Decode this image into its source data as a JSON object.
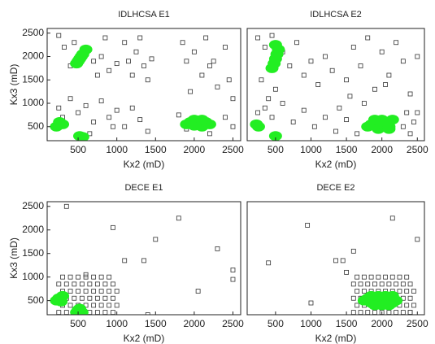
{
  "chart_data": [
    {
      "type": "scatter",
      "title": "IDLHCSA E1",
      "xlabel": "Kx2 (mD)",
      "ylabel": "Kx3 (mD)",
      "xlim": [
        100,
        2600
      ],
      "ylim": [
        200,
        2600
      ],
      "xticks": [
        500,
        1000,
        1500,
        2000,
        2500
      ],
      "yticks": [
        500,
        1000,
        1500,
        2000,
        2500
      ],
      "series": [
        {
          "color": "#333333",
          "marker": "square",
          "x": [
            250,
            320,
            400,
            450,
            600,
            700,
            750,
            800,
            850,
            900,
            1000,
            1100,
            1150,
            1200,
            1250,
            1300,
            1350,
            1400,
            1450,
            1850,
            1900,
            2000,
            2100,
            2150,
            2200,
            2300,
            2400,
            2450,
            2500,
            1950,
            2250,
            250,
            300,
            400,
            500,
            600,
            700,
            800,
            900,
            1000,
            1100,
            1200,
            1300,
            1400,
            1800,
            1900,
            2200,
            2400,
            2500,
            650,
            950
          ],
          "y": [
            2450,
            2200,
            1800,
            2300,
            2100,
            1900,
            1600,
            2000,
            2400,
            1700,
            1850,
            2300,
            1900,
            1600,
            2100,
            2400,
            1800,
            1500,
            1950,
            2300,
            1900,
            2100,
            1600,
            2400,
            1800,
            1350,
            2200,
            1500,
            1100,
            1250,
            1900,
            900,
            700,
            1100,
            800,
            950,
            600,
            1050,
            700,
            850,
            500,
            900,
            650,
            400,
            750,
            450,
            350,
            700,
            500,
            350,
            500
          ]
        },
        {
          "color": "#22ee22",
          "marker": "circle",
          "x": [
            480,
            520,
            560,
            600,
            540,
            500,
            220,
            260,
            300,
            520,
            560,
            1900,
            1950,
            2000,
            2050,
            2100,
            2150,
            2200,
            2000,
            2100
          ],
          "y": [
            1850,
            1950,
            2050,
            2150,
            2000,
            1900,
            500,
            600,
            550,
            300,
            280,
            550,
            600,
            520,
            580,
            500,
            600,
            550,
            650,
            650
          ]
        }
      ]
    },
    {
      "type": "scatter",
      "title": "IDLHCSA E2",
      "xlabel": "Kx2 (mD)",
      "xlim": [
        100,
        2600
      ],
      "ylim": [
        200,
        2600
      ],
      "xticks": [
        500,
        1000,
        1500,
        2000,
        2500
      ],
      "series": [
        {
          "color": "#333333",
          "marker": "square",
          "x": [
            250,
            300,
            350,
            400,
            450,
            500,
            600,
            700,
            800,
            900,
            1000,
            1100,
            1200,
            1300,
            1500,
            1600,
            1700,
            1800,
            1900,
            2000,
            2100,
            2200,
            2300,
            2400,
            2500,
            1400,
            1550,
            1750,
            2050,
            2350,
            250,
            350,
            450,
            600,
            750,
            900,
            1050,
            1200,
            1350,
            1500,
            1650,
            2300,
            2400,
            2500,
            2450
          ],
          "y": [
            2400,
            1500,
            2200,
            1100,
            2450,
            1300,
            2100,
            1800,
            2300,
            1600,
            1900,
            1400,
            2000,
            1700,
            1500,
            2200,
            1800,
            2400,
            1300,
            2100,
            1600,
            2300,
            1900,
            1200,
            2000,
            900,
            1150,
            1000,
            1400,
            800,
            800,
            900,
            700,
            1000,
            600,
            850,
            500,
            700,
            400,
            650,
            350,
            500,
            350,
            800,
            600
          ]
        },
        {
          "color": "#22ee22",
          "marker": "circle",
          "x": [
            450,
            480,
            500,
            520,
            540,
            500,
            230,
            260,
            500,
            1800,
            1850,
            1900,
            1950,
            2000,
            2050,
            2100,
            2150,
            1900,
            2000,
            2100
          ],
          "y": [
            1750,
            1850,
            1950,
            2050,
            2150,
            2250,
            550,
            500,
            300,
            500,
            550,
            600,
            450,
            550,
            600,
            500,
            650,
            650,
            650,
            450
          ]
        }
      ]
    },
    {
      "type": "scatter",
      "title": "DECE E1",
      "xlabel": "Kx2 (mD)",
      "ylabel": "Kx3 (mD)",
      "xlim": [
        100,
        2600
      ],
      "ylim": [
        200,
        2600
      ],
      "xticks": [
        500,
        1000,
        1500,
        2000,
        2500
      ],
      "yticks": [
        500,
        1000,
        1500,
        2000,
        2500
      ],
      "series": [
        {
          "color": "#333333",
          "marker": "square",
          "x": [
            250,
            350,
            450,
            550,
            650,
            750,
            850,
            950,
            300,
            400,
            500,
            600,
            700,
            800,
            900,
            1000,
            250,
            350,
            450,
            550,
            650,
            750,
            850,
            950,
            300,
            400,
            500,
            600,
            700,
            800,
            900,
            1000,
            250,
            350,
            450,
            550,
            650,
            750,
            850,
            950,
            300,
            400,
            500,
            600,
            700,
            800,
            900,
            350,
            950,
            1100,
            1350,
            1800,
            1500,
            2050,
            2300,
            2500,
            2500,
            1400,
            600
          ],
          "y": [
            250,
            250,
            250,
            250,
            250,
            250,
            250,
            250,
            400,
            400,
            400,
            400,
            400,
            400,
            400,
            400,
            550,
            550,
            550,
            550,
            550,
            550,
            550,
            550,
            700,
            700,
            700,
            700,
            700,
            700,
            700,
            700,
            850,
            850,
            850,
            850,
            850,
            850,
            850,
            850,
            1000,
            1000,
            1000,
            1000,
            1000,
            1000,
            1000,
            2500,
            2050,
            1350,
            1350,
            2250,
            1800,
            700,
            1600,
            1150,
            950,
            200,
            1050
          ]
        },
        {
          "color": "#22ee22",
          "marker": "circle",
          "x": [
            250,
            300,
            220,
            280,
            500,
            550,
            480,
            520
          ],
          "y": [
            550,
            600,
            500,
            480,
            300,
            250,
            250,
            330
          ]
        }
      ]
    },
    {
      "type": "scatter",
      "title": "DECE E2",
      "xlabel": "Kx2 (mD)",
      "xlim": [
        100,
        2600
      ],
      "ylim": [
        200,
        2600
      ],
      "xticks": [
        500,
        1000,
        1500,
        2000,
        2500
      ],
      "series": [
        {
          "color": "#333333",
          "marker": "square",
          "x": [
            1600,
            1700,
            1800,
            1900,
            2000,
            2100,
            2200,
            2300,
            2400,
            1650,
            1750,
            1850,
            1950,
            2050,
            2150,
            2250,
            2350,
            2450,
            1600,
            1700,
            1800,
            1900,
            2000,
            2100,
            2200,
            2300,
            2400,
            1650,
            1750,
            1850,
            1950,
            2050,
            2150,
            2250,
            2350,
            2450,
            1600,
            1700,
            1800,
            1900,
            2000,
            2100,
            2200,
            2300,
            2400,
            1650,
            1750,
            1850,
            1950,
            2050,
            2150,
            2250,
            2350,
            400,
            950,
            1000,
            1350,
            1450,
            1600,
            2150,
            2500,
            2400,
            1500
          ],
          "y": [
            250,
            250,
            250,
            250,
            250,
            250,
            250,
            250,
            250,
            400,
            400,
            400,
            400,
            400,
            400,
            400,
            400,
            400,
            550,
            550,
            550,
            550,
            550,
            550,
            550,
            550,
            550,
            700,
            700,
            700,
            700,
            700,
            700,
            700,
            700,
            700,
            850,
            850,
            850,
            850,
            850,
            850,
            850,
            850,
            850,
            1000,
            1000,
            1000,
            1000,
            1000,
            1000,
            1000,
            1000,
            1300,
            2100,
            450,
            1350,
            1350,
            1550,
            2250,
            1800,
            250,
            1100
          ]
        },
        {
          "color": "#22ee22",
          "marker": "circle",
          "x": [
            1750,
            1800,
            1850,
            1900,
            1950,
            2000,
            2050,
            2100,
            2150,
            2200,
            1850,
            1950,
            2050,
            2150,
            1900,
            2000,
            2100
          ],
          "y": [
            500,
            550,
            450,
            550,
            450,
            550,
            450,
            550,
            450,
            500,
            600,
            600,
            600,
            600,
            400,
            400,
            400
          ]
        }
      ]
    }
  ]
}
